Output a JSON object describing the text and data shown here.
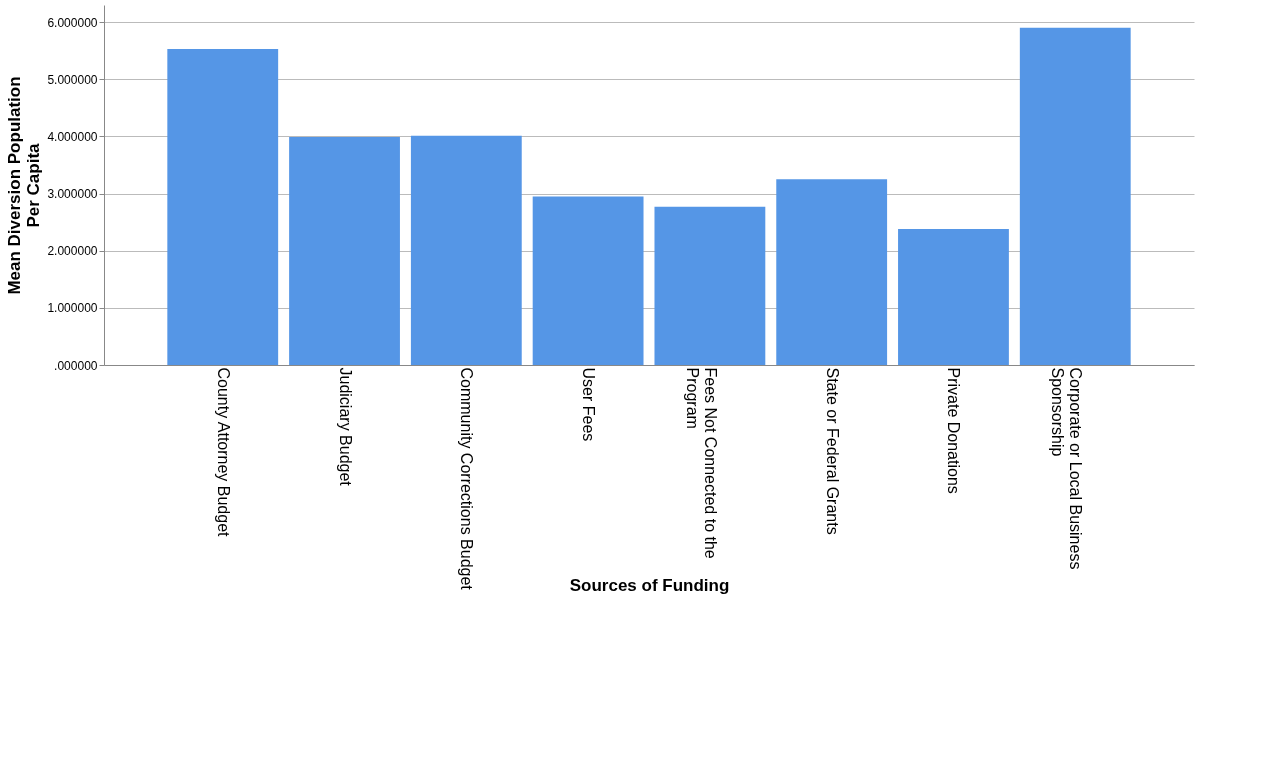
{
  "chart_data": {
    "type": "bar",
    "xlabel": "Sources of Funding",
    "ylabel": "Mean Diversion Population Per Capita",
    "categories": [
      "County Attorney Budget",
      "Judiciary Budget",
      "Community Corrections Budget",
      "User Fees",
      "Fees Not Connected to the Program",
      "State or Federal Grants",
      "Private Donations",
      "Corporate or Local Business Sponsorship"
    ],
    "values": [
      5.53,
      3.99,
      4.01,
      2.95,
      2.77,
      3.25,
      2.38,
      5.9
    ],
    "color": "#5596e6",
    "ylim": [
      0,
      6.3
    ],
    "yticks": [
      {
        "value": 0,
        "label": ".000000"
      },
      {
        "value": 1,
        "label": "1.000000"
      },
      {
        "value": 2,
        "label": "2.000000"
      },
      {
        "value": 3,
        "label": "3.000000"
      },
      {
        "value": 4,
        "label": "4.000000"
      },
      {
        "value": 5,
        "label": "5.000000"
      },
      {
        "value": 6,
        "label": "6.000000"
      }
    ],
    "grid": "y"
  }
}
